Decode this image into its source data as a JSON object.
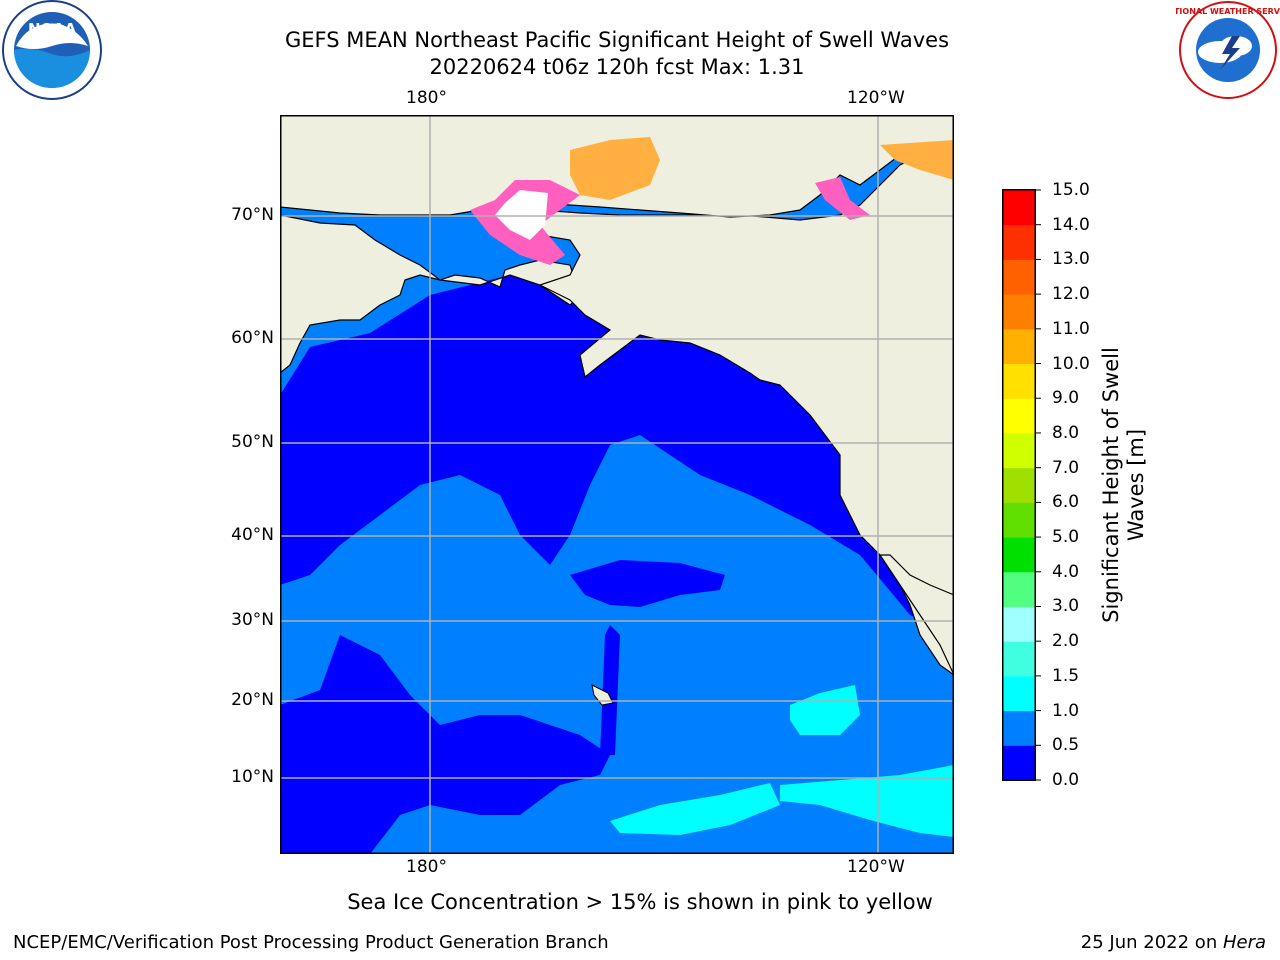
{
  "header": {
    "title_line1": "GEFS MEAN Northeast Pacific Significant Height of Swell Waves",
    "title_line2": "20220624 t06z 120h fcst   Max: 1.31"
  },
  "logos": {
    "left": {
      "icon": "noaa-logo-icon",
      "text": "NOAA"
    },
    "right": {
      "icon": "nws-logo-icon",
      "text": "NATIONAL WEATHER SERVICE"
    }
  },
  "map": {
    "lon_labels": [
      "180°",
      "120°W"
    ],
    "lat_labels": [
      "70°N",
      "60°N",
      "50°N",
      "40°N",
      "30°N",
      "20°N",
      "10°N"
    ],
    "colors": {
      "land": "#efefdf",
      "sea_low": "#0000ff",
      "sea_mid": "#0080ff",
      "sea_high": "#00ffff",
      "ice_pink": "#ff60c0",
      "ice_orange": "#ffb040",
      "grid": "#b0b0b0"
    }
  },
  "colorbar": {
    "label": "Significant Height of Swell Waves [m]",
    "ticks": [
      "15.0",
      "14.0",
      "13.0",
      "12.0",
      "11.0",
      "10.0",
      "9.0",
      "8.0",
      "7.0",
      "6.0",
      "5.0",
      "4.0",
      "3.0",
      "2.0",
      "1.5",
      "1.0",
      "0.5",
      "0.0"
    ],
    "colors": [
      "#0000ff",
      "#0080ff",
      "#00ffff",
      "#40ffe0",
      "#a0ffff",
      "#50ff80",
      "#00e000",
      "#60e000",
      "#a0e000",
      "#d0ff00",
      "#ffff00",
      "#ffe000",
      "#ffb000",
      "#ff8000",
      "#ff6000",
      "#ff3000",
      "#ff0000"
    ]
  },
  "footer": {
    "subtitle": "Sea Ice Concentration > 15% is shown in pink to yellow",
    "left": "NCEP/EMC/Verification Post Processing Product Generation Branch",
    "right_prefix": "25 Jun 2022 on ",
    "right_machine": "Hera"
  }
}
